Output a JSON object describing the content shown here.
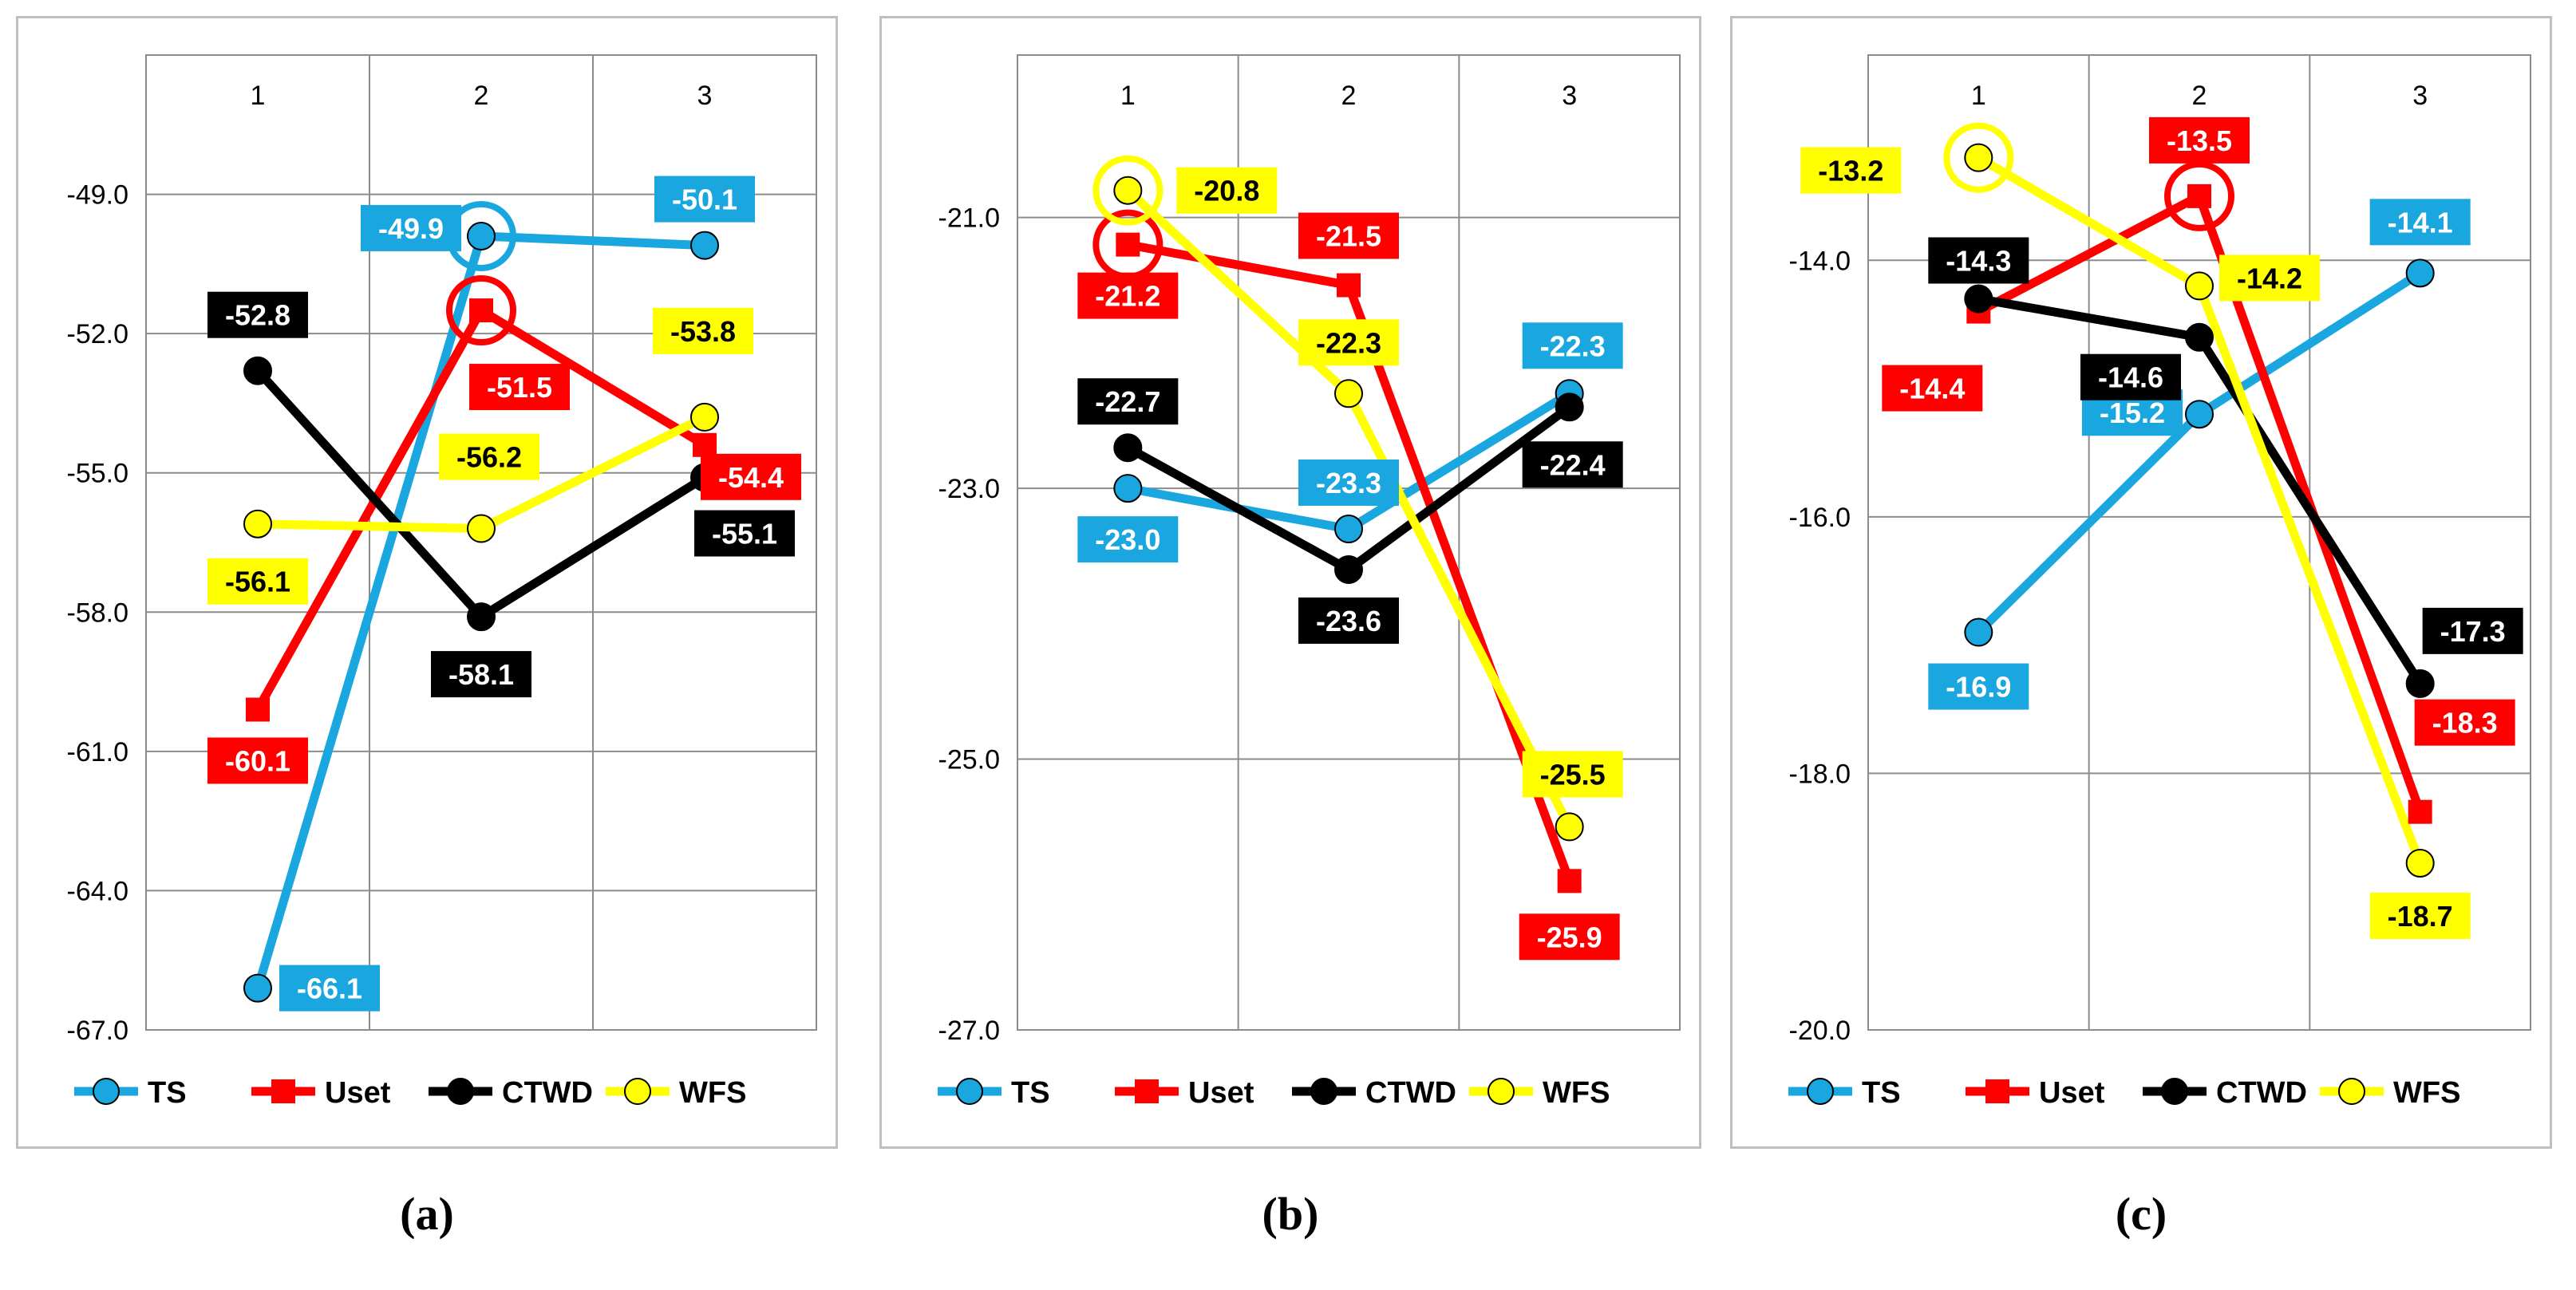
{
  "colors": {
    "TS": "#1aa7e0",
    "Uset": "#ff0000",
    "CTWD": "#000000",
    "WFS": "#ffff00"
  },
  "legend": [
    "TS",
    "Uset",
    "CTWD",
    "WFS"
  ],
  "chart_data": [
    {
      "type": "line",
      "categories": [
        "1",
        "2",
        "3"
      ],
      "ylim": [
        -67.0,
        -46.0
      ],
      "yticks": [
        -67.0,
        -64.0,
        -61.0,
        -58.0,
        -55.0,
        -52.0,
        -49.0
      ],
      "ytick_labels": [
        "-67.0",
        "-64.0",
        "-61.0",
        "-58.0",
        "-55.0",
        "-52.0",
        "-49.0"
      ],
      "grid": true,
      "legend_position": "bottom",
      "series": [
        {
          "name": "TS",
          "values": [
            -66.1,
            -49.9,
            -50.1
          ],
          "labels": [
            "-66.1",
            "-49.9",
            "-50.1"
          ],
          "highlight": 1
        },
        {
          "name": "Uset",
          "values": [
            -60.1,
            -51.5,
            -54.4
          ],
          "labels": [
            "-60.1",
            "-51.5",
            "-54.4"
          ],
          "highlight": 1
        },
        {
          "name": "CTWD",
          "values": [
            -52.8,
            -58.1,
            -55.1
          ],
          "labels": [
            "-52.8",
            "-58.1",
            "-55.1"
          ],
          "highlight": null
        },
        {
          "name": "WFS",
          "values": [
            -56.1,
            -56.2,
            -53.8
          ],
          "labels": [
            "-56.1",
            "-56.2",
            "-53.8"
          ],
          "highlight": null
        }
      ],
      "caption": "(a)"
    },
    {
      "type": "line",
      "categories": [
        "1",
        "2",
        "3"
      ],
      "ylim": [
        -27.0,
        -19.8
      ],
      "yticks": [
        -27.0,
        -25.0,
        -23.0,
        -21.0
      ],
      "ytick_labels": [
        "-27.0",
        "-25.0",
        "-23.0",
        "-21.0"
      ],
      "grid": true,
      "legend_position": "bottom",
      "series": [
        {
          "name": "TS",
          "values": [
            -23.0,
            -23.3,
            -22.3
          ],
          "labels": [
            "-23.0",
            "-23.3",
            "-22.3"
          ],
          "highlight": null
        },
        {
          "name": "Uset",
          "values": [
            -21.2,
            -21.5,
            -25.9
          ],
          "labels": [
            "-21.2",
            "-21.5",
            "-25.9"
          ],
          "highlight": 0
        },
        {
          "name": "CTWD",
          "values": [
            -22.7,
            -23.6,
            -22.4
          ],
          "labels": [
            "-22.7",
            "-23.6",
            "-22.4"
          ],
          "highlight": null
        },
        {
          "name": "WFS",
          "values": [
            -20.8,
            -22.3,
            -25.5
          ],
          "labels": [
            "-20.8",
            "-22.3",
            "-25.5"
          ],
          "highlight": 0
        }
      ],
      "caption": "(b)"
    },
    {
      "type": "line",
      "categories": [
        "1",
        "2",
        "3"
      ],
      "ylim": [
        -20.0,
        -12.4
      ],
      "yticks": [
        -20.0,
        -18.0,
        -16.0,
        -14.0
      ],
      "ytick_labels": [
        "-20.0",
        "-18.0",
        "-16.0",
        "-14.0"
      ],
      "grid": true,
      "legend_position": "bottom",
      "series": [
        {
          "name": "TS",
          "values": [
            -16.9,
            -15.2,
            -14.1
          ],
          "labels": [
            "-16.9",
            "-15.2",
            "-14.1"
          ],
          "highlight": null
        },
        {
          "name": "Uset",
          "values": [
            -14.4,
            -13.5,
            -18.3
          ],
          "labels": [
            "-14.4",
            "-13.5",
            "-18.3"
          ],
          "highlight": 1
        },
        {
          "name": "CTWD",
          "values": [
            -14.3,
            -14.6,
            -17.3
          ],
          "labels": [
            "-14.3",
            "-14.6",
            "-17.3"
          ],
          "highlight": null
        },
        {
          "name": "WFS",
          "values": [
            -13.2,
            -14.2,
            -18.7
          ],
          "labels": [
            "-13.2",
            "-14.2",
            "-18.7"
          ],
          "highlight": 0
        }
      ],
      "caption": "(c)"
    }
  ]
}
